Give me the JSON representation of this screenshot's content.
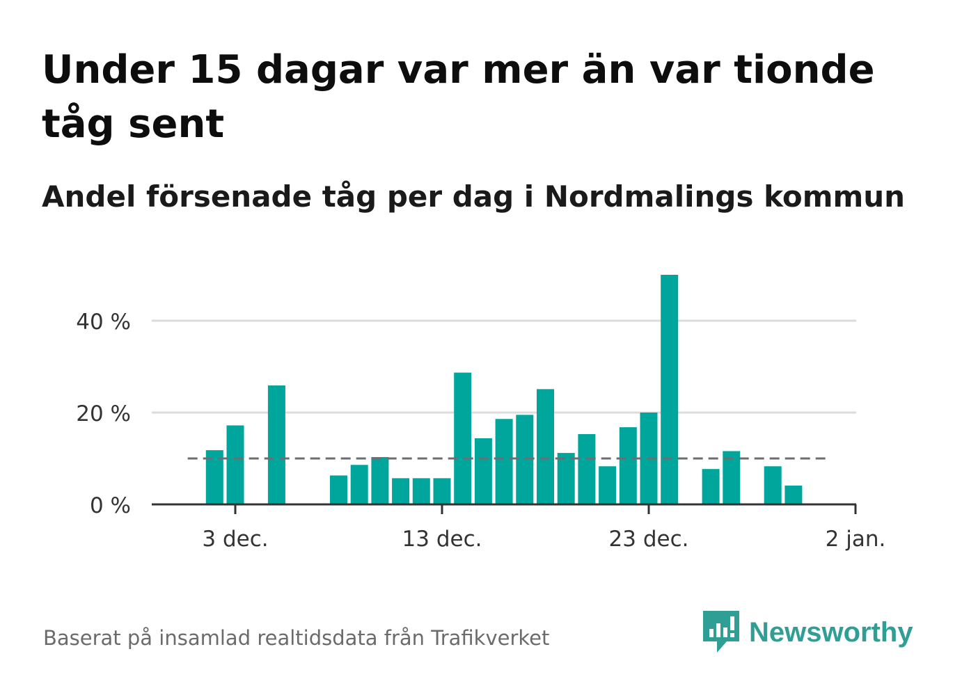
{
  "header": {
    "title": "Under 15 dagar var mer än var tionde tåg sent",
    "subtitle": "Andel försenade tåg per dag i Nordmalings kommun"
  },
  "footer": {
    "source": "Baserat på insamlad realtidsdata från Trafikverket",
    "brand": "Newsworthy"
  },
  "colors": {
    "bar": "#00a59b",
    "grid": "#dcdcdc",
    "axis": "#333333",
    "reference_line": "#6e6e72",
    "brand": "#2f9f95"
  },
  "chart_data": {
    "type": "bar",
    "title": "Andel försenade tåg per dag i Nordmalings kommun",
    "x_start_date": "2023-11-29",
    "x_end_date": "2024-01-02",
    "x_ticks": [
      {
        "day": 4,
        "label": "3 dec."
      },
      {
        "day": 14,
        "label": "13 dec."
      },
      {
        "day": 24,
        "label": "23 dec."
      },
      {
        "day": 34,
        "label": "2 jan."
      }
    ],
    "y_ticks": [
      {
        "value": 0,
        "label": "0 %"
      },
      {
        "value": 20,
        "label": "20 %"
      },
      {
        "value": 40,
        "label": "40 %"
      }
    ],
    "ylim": [
      0,
      50
    ],
    "reference_value": 10,
    "reference_range": [
      1.7,
      32.7
    ],
    "grid": true,
    "bars": [
      {
        "day": 3,
        "date": "2 dec.",
        "value": 11.8
      },
      {
        "day": 4,
        "date": "3 dec.",
        "value": 17.2
      },
      {
        "day": 6,
        "date": "5 dec.",
        "value": 25.9
      },
      {
        "day": 9,
        "date": "8 dec.",
        "value": 6.3
      },
      {
        "day": 10,
        "date": "9 dec.",
        "value": 8.6
      },
      {
        "day": 11,
        "date": "10 dec.",
        "value": 10.3
      },
      {
        "day": 12,
        "date": "11 dec.",
        "value": 5.7
      },
      {
        "day": 13,
        "date": "12 dec.",
        "value": 5.7
      },
      {
        "day": 14,
        "date": "13 dec.",
        "value": 5.7
      },
      {
        "day": 15,
        "date": "14 dec.",
        "value": 28.7
      },
      {
        "day": 16,
        "date": "15 dec.",
        "value": 14.4
      },
      {
        "day": 17,
        "date": "16 dec.",
        "value": 18.6
      },
      {
        "day": 18,
        "date": "17 dec.",
        "value": 19.5
      },
      {
        "day": 19,
        "date": "18 dec.",
        "value": 25.1
      },
      {
        "day": 20,
        "date": "19 dec.",
        "value": 11.2
      },
      {
        "day": 21,
        "date": "20 dec.",
        "value": 15.3
      },
      {
        "day": 22,
        "date": "21 dec.",
        "value": 8.3
      },
      {
        "day": 23,
        "date": "22 dec.",
        "value": 16.8
      },
      {
        "day": 24,
        "date": "23 dec.",
        "value": 20.0
      },
      {
        "day": 25,
        "date": "24 dec.",
        "value": 50.0
      },
      {
        "day": 27,
        "date": "26 dec.",
        "value": 7.7
      },
      {
        "day": 28,
        "date": "27 dec.",
        "value": 11.6
      },
      {
        "day": 30,
        "date": "29 dec.",
        "value": 8.3
      },
      {
        "day": 31,
        "date": "30 dec.",
        "value": 4.1
      }
    ]
  }
}
